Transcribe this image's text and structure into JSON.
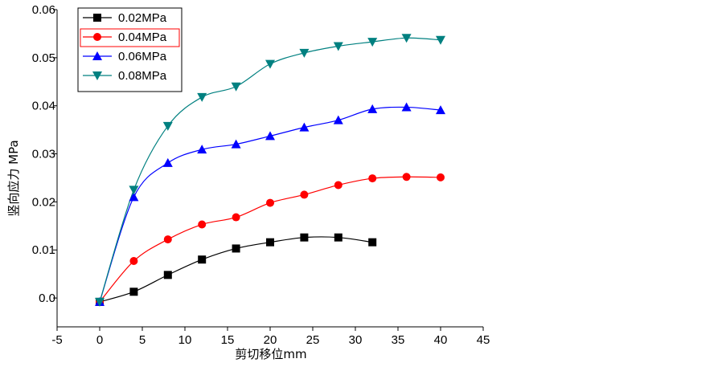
{
  "chart_data": {
    "type": "line",
    "xlabel": "剪切移位mm",
    "ylabel": "竖向应力 MPa",
    "xlim": [
      -5,
      45
    ],
    "ylim": [
      -0.006,
      0.06
    ],
    "xticks": [
      "-5",
      "0",
      "5",
      "10",
      "15",
      "20",
      "25",
      "30",
      "35",
      "40",
      "45"
    ],
    "yticks": [
      "0.0",
      "0.01",
      "0.02",
      "0.03",
      "0.04",
      "0.05",
      "0.06"
    ],
    "grid": false,
    "legend_position": "top-left",
    "series": [
      {
        "name": "0.02MPa",
        "color": "#000000",
        "marker": "square",
        "x": [
          0,
          4,
          8,
          12,
          16,
          20,
          24,
          28,
          32
        ],
        "y": [
          -0.0008,
          0.0013,
          0.0048,
          0.008,
          0.0103,
          0.0116,
          0.0126,
          0.0126,
          0.0116
        ]
      },
      {
        "name": "0.04MPa",
        "color": "#ff0000",
        "marker": "circle",
        "x": [
          0,
          4,
          8,
          12,
          16,
          20,
          24,
          28,
          32,
          36,
          40
        ],
        "y": [
          -0.0008,
          0.0077,
          0.0122,
          0.0153,
          0.0168,
          0.0198,
          0.0215,
          0.0235,
          0.0249,
          0.0252,
          0.0251
        ]
      },
      {
        "name": "0.06MPa",
        "color": "#0000ff",
        "marker": "triangle-up",
        "x": [
          0,
          4,
          8,
          12,
          16,
          20,
          24,
          28,
          32,
          36,
          40
        ],
        "y": [
          -0.0008,
          0.021,
          0.0281,
          0.0309,
          0.032,
          0.0337,
          0.0355,
          0.037,
          0.0393,
          0.0397,
          0.0391
        ]
      },
      {
        "name": "0.08MPa",
        "color": "#008080",
        "marker": "triangle-down",
        "x": [
          0,
          4,
          8,
          12,
          16,
          20,
          24,
          28,
          32,
          36,
          40
        ],
        "y": [
          -0.0008,
          0.0225,
          0.0358,
          0.0418,
          0.044,
          0.0487,
          0.051,
          0.0524,
          0.0533,
          0.0541,
          0.0537
        ]
      }
    ]
  }
}
